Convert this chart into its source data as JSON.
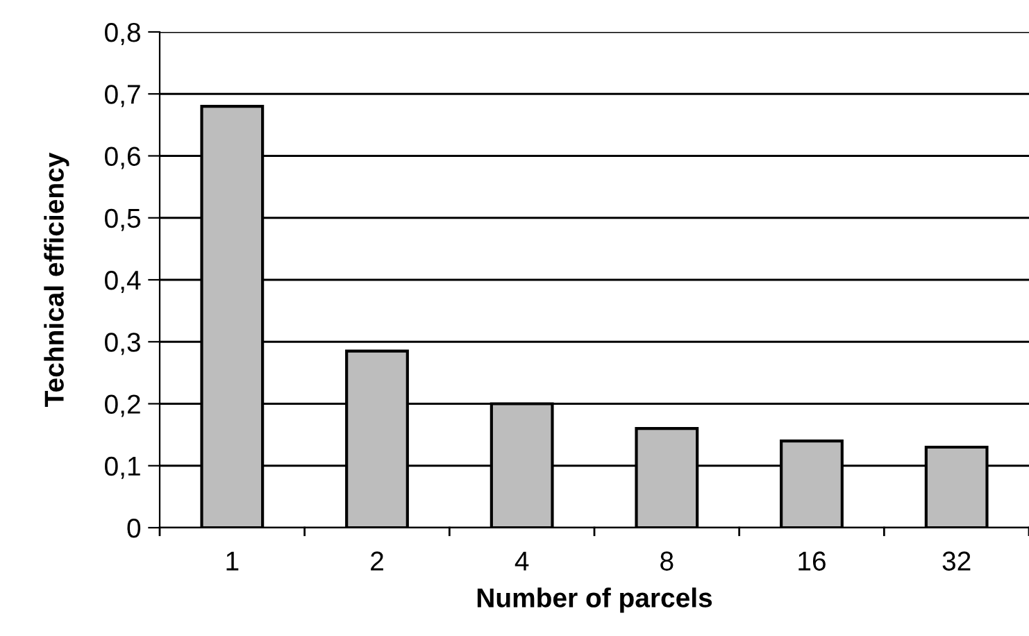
{
  "chart_data": {
    "type": "bar",
    "xlabel": "Number of parcels",
    "ylabel": "Technical efficiency",
    "categories": [
      "1",
      "2",
      "4",
      "8",
      "16",
      "32"
    ],
    "values": [
      0.68,
      0.285,
      0.2,
      0.16,
      0.14,
      0.13
    ],
    "color": "#bdbdbd",
    "ylim": [
      0,
      0.8
    ],
    "yticks": [
      0,
      {
        "value": 0.1,
        "label": "0,1"
      },
      {
        "value": 0.2,
        "label": "0,2"
      },
      {
        "value": 0.3,
        "label": "0,3"
      },
      {
        "value": 0.4,
        "label": "0,4"
      },
      {
        "value": 0.5,
        "label": "0,5"
      },
      {
        "value": 0.6,
        "label": "0,6"
      },
      {
        "value": 0.7,
        "label": "0,7"
      },
      {
        "value": 0.8,
        "label": "0,8"
      }
    ],
    "grid": "y"
  }
}
